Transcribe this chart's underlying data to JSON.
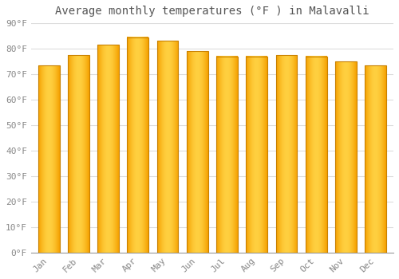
{
  "title": "Average monthly temperatures (°F ) in Malavalli",
  "months": [
    "Jan",
    "Feb",
    "Mar",
    "Apr",
    "May",
    "Jun",
    "Jul",
    "Aug",
    "Sep",
    "Oct",
    "Nov",
    "Dec"
  ],
  "values": [
    73.5,
    77.5,
    81.5,
    84.5,
    83.0,
    79.0,
    77.0,
    77.0,
    77.5,
    77.0,
    75.0,
    73.5
  ],
  "bar_color_center": "#FFD040",
  "bar_color_edge": "#F5A000",
  "bar_edge_color": "#C88000",
  "ylim": [
    0,
    90
  ],
  "yticks": [
    0,
    10,
    20,
    30,
    40,
    50,
    60,
    70,
    80,
    90
  ],
  "ytick_labels": [
    "0°F",
    "10°F",
    "20°F",
    "30°F",
    "40°F",
    "50°F",
    "60°F",
    "70°F",
    "80°F",
    "90°F"
  ],
  "background_color": "#ffffff",
  "grid_color": "#dddddd",
  "title_fontsize": 10,
  "tick_fontsize": 8,
  "tick_color": "#888888",
  "font_family": "monospace"
}
